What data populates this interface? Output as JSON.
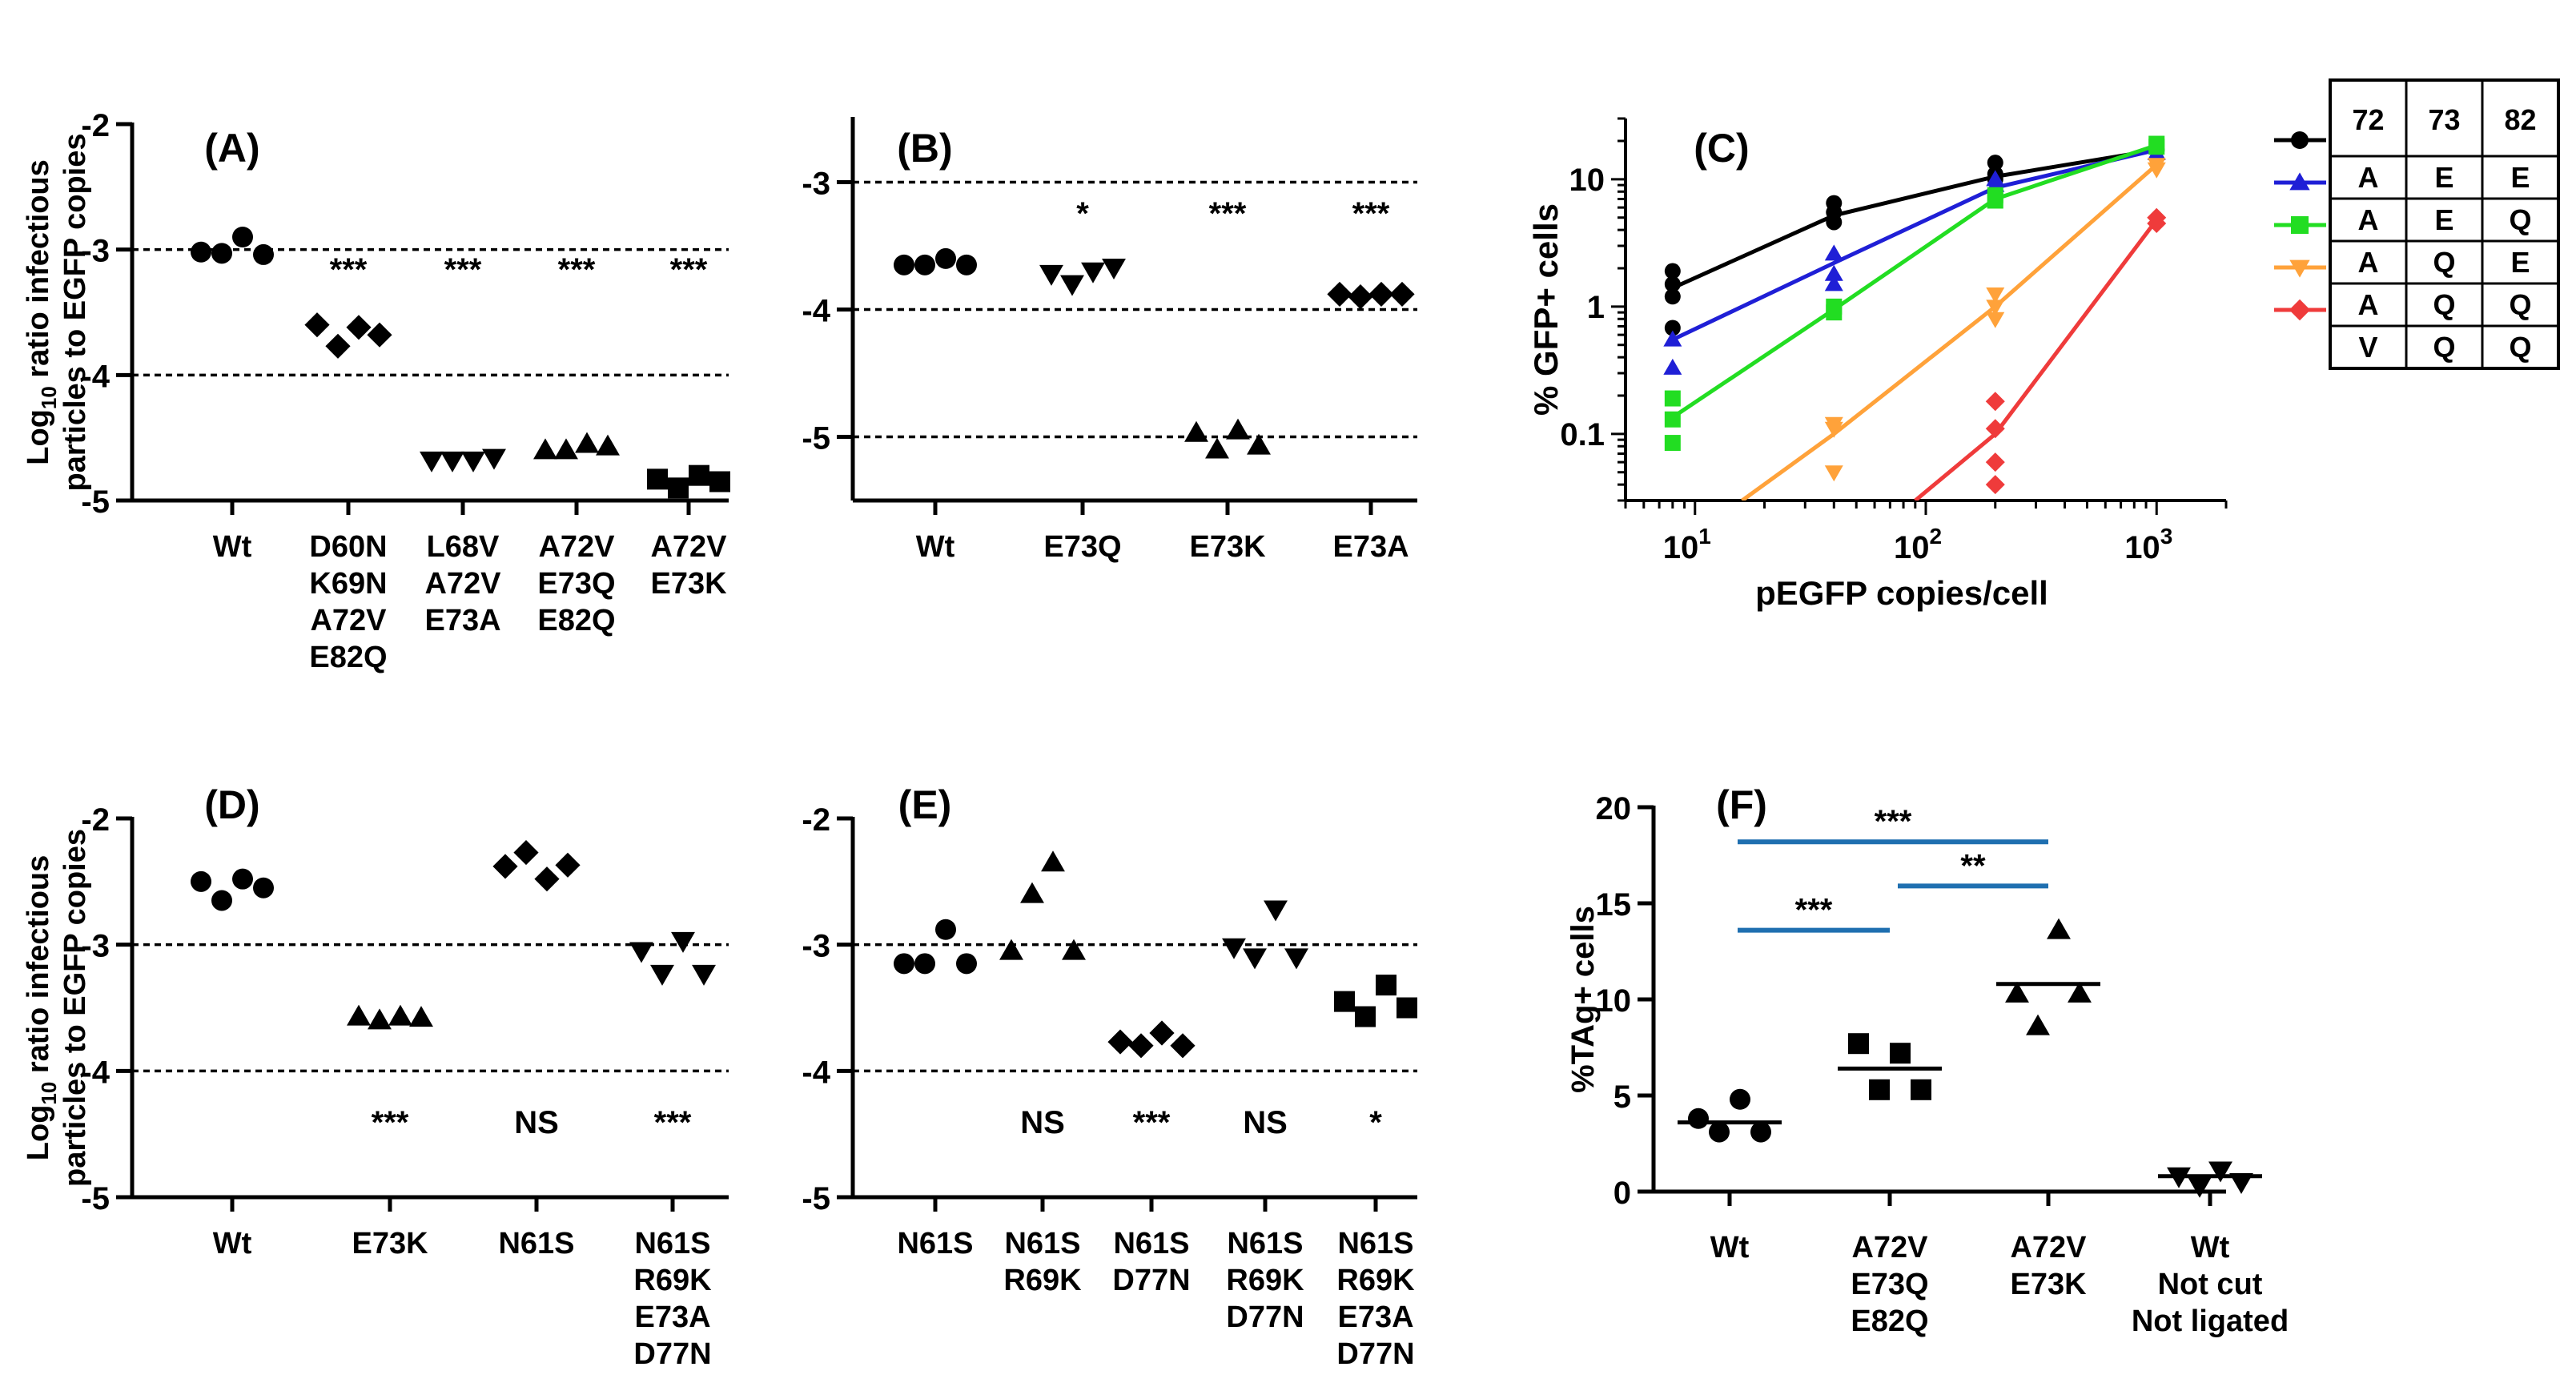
{
  "chart_data": [
    {
      "panel": "(A)",
      "type": "scatter",
      "ylabel_prefix": "Log",
      "ylabel_sub": "10",
      "ylabel_line1": " ratio infectious",
      "ylabel_line2": "particles to EGFP copies",
      "ylim": [
        -5,
        -2
      ],
      "yticks": [
        {
          "v": -2,
          "label": "-2"
        },
        {
          "v": -3,
          "label": "-3"
        },
        {
          "v": -4,
          "label": "-4"
        },
        {
          "v": -5,
          "label": "-5"
        }
      ],
      "reference_lines": [
        -3,
        -4
      ],
      "groups": [
        {
          "label_lines": [
            "Wt"
          ],
          "marker": "circle",
          "values": [
            -3.02,
            -3.03,
            -2.9,
            -3.04
          ],
          "sig": ""
        },
        {
          "label_lines": [
            "D60N",
            "K69N",
            "A72V",
            "E82Q"
          ],
          "marker": "diamond",
          "values": [
            -3.6,
            -3.77,
            -3.62,
            -3.68
          ],
          "sig": "***"
        },
        {
          "label_lines": [
            "L68V",
            "A72V",
            "E73A"
          ],
          "marker": "triangle-down",
          "values": [
            -4.68,
            -4.68,
            -4.68,
            -4.66
          ],
          "sig": "***"
        },
        {
          "label_lines": [
            "A72V",
            "E73Q",
            "E82Q"
          ],
          "marker": "triangle-up",
          "values": [
            -4.6,
            -4.6,
            -4.55,
            -4.57
          ],
          "sig": "***"
        },
        {
          "label_lines": [
            "A72V",
            "E73K"
          ],
          "marker": "square",
          "values": [
            -4.83,
            -4.9,
            -4.8,
            -4.85
          ],
          "sig": "***"
        }
      ]
    },
    {
      "panel": "(B)",
      "type": "scatter",
      "ylim": [
        -5.5,
        -2.5
      ],
      "yticks": [
        {
          "v": -3,
          "label": "-3"
        },
        {
          "v": -4,
          "label": "-4"
        },
        {
          "v": -5,
          "label": "-5"
        }
      ],
      "reference_lines": [
        -3,
        -4,
        -5
      ],
      "groups": [
        {
          "label_lines": [
            "Wt"
          ],
          "marker": "circle",
          "values": [
            -3.65,
            -3.65,
            -3.6,
            -3.65
          ],
          "sig": ""
        },
        {
          "label_lines": [
            "E73Q"
          ],
          "marker": "triangle-down",
          "values": [
            -3.72,
            -3.8,
            -3.7,
            -3.67
          ],
          "sig": "*"
        },
        {
          "label_lines": [
            "E73K"
          ],
          "marker": "triangle-up",
          "values": [
            -4.97,
            -5.1,
            -4.95,
            -5.07
          ],
          "sig": "***"
        },
        {
          "label_lines": [
            "E73A"
          ],
          "marker": "diamond",
          "values": [
            -3.88,
            -3.9,
            -3.88,
            -3.88
          ],
          "sig": "***"
        }
      ]
    },
    {
      "panel": "(C)",
      "type": "line",
      "xlabel": "pEGFP copies/cell",
      "ylabel": "% GFP+ cells",
      "xscale": "log",
      "yscale": "log",
      "xlim": [
        5,
        2000
      ],
      "ylim": [
        0.03,
        30
      ],
      "xticks": [
        {
          "v": 10,
          "base": "10",
          "exp": "1"
        },
        {
          "v": 100,
          "base": "10",
          "exp": "2"
        },
        {
          "v": 1000,
          "base": "10",
          "exp": "3"
        }
      ],
      "yticks": [
        {
          "v": 10,
          "label": "10"
        },
        {
          "v": 1,
          "label": "1"
        },
        {
          "v": 0.1,
          "label": "0.1"
        }
      ],
      "series": [
        {
          "name": "A E E",
          "color": "#000000",
          "marker": "circle",
          "points": [
            [
              8,
              1.9
            ],
            [
              8,
              1.5
            ],
            [
              8,
              1.2
            ],
            [
              8,
              0.68
            ],
            [
              40,
              6.5
            ],
            [
              40,
              5.5
            ],
            [
              40,
              4.6
            ],
            [
              200,
              13.5
            ],
            [
              200,
              11
            ],
            [
              200,
              10
            ],
            [
              1000,
              17
            ]
          ],
          "fit": [
            [
              8,
              1.4
            ],
            [
              40,
              5.2
            ],
            [
              200,
              10.5
            ],
            [
              1000,
              17
            ]
          ]
        },
        {
          "name": "A E Q",
          "color": "#1f1fd6",
          "marker": "triangle-up",
          "points": [
            [
              8,
              0.55
            ],
            [
              8,
              0.33
            ],
            [
              40,
              2.6
            ],
            [
              40,
              1.8
            ],
            [
              40,
              1.5
            ],
            [
              200,
              10
            ],
            [
              200,
              9
            ],
            [
              1000,
              16
            ]
          ],
          "fit": [
            [
              8,
              0.55
            ],
            [
              40,
              2.2
            ],
            [
              200,
              8.6
            ],
            [
              1000,
              17
            ]
          ]
        },
        {
          "name": "A Q E",
          "color": "#22dd22",
          "marker": "square",
          "points": [
            [
              8,
              0.19
            ],
            [
              8,
              0.13
            ],
            [
              8,
              0.085
            ],
            [
              40,
              1.0
            ],
            [
              40,
              0.9
            ],
            [
              200,
              7.5
            ],
            [
              200,
              6.8
            ],
            [
              1000,
              19
            ],
            [
              1000,
              18
            ]
          ],
          "fit": [
            [
              8,
              0.135
            ],
            [
              40,
              0.95
            ],
            [
              200,
              7
            ],
            [
              1000,
              18.5
            ]
          ]
        },
        {
          "name": "A Q Q",
          "color": "#ffa23a",
          "marker": "triangle-down",
          "points": [
            [
              40,
              0.12
            ],
            [
              40,
              0.11
            ],
            [
              40,
              0.05
            ],
            [
              200,
              1.25
            ],
            [
              200,
              1.0
            ],
            [
              200,
              0.8
            ],
            [
              1000,
              13
            ],
            [
              1000,
              12
            ]
          ],
          "fit": [
            [
              16,
              0.03
            ],
            [
              40,
              0.1
            ],
            [
              200,
              1.0
            ],
            [
              1000,
              13
            ]
          ]
        },
        {
          "name": "V Q Q",
          "color": "#ef3b3b",
          "marker": "diamond",
          "points": [
            [
              200,
              0.18
            ],
            [
              200,
              0.11
            ],
            [
              200,
              0.06
            ],
            [
              200,
              0.04
            ],
            [
              1000,
              5.0
            ],
            [
              1000,
              4.5
            ]
          ],
          "fit": [
            [
              90,
              0.03
            ],
            [
              200,
              0.1
            ],
            [
              1000,
              4.8
            ]
          ]
        }
      ],
      "legend_table": {
        "headers": [
          "72",
          "73",
          "82"
        ],
        "rows": [
          [
            "A",
            "E",
            "E"
          ],
          [
            "A",
            "E",
            "Q"
          ],
          [
            "A",
            "Q",
            "E"
          ],
          [
            "A",
            "Q",
            "Q"
          ],
          [
            "V",
            "Q",
            "Q"
          ]
        ]
      }
    },
    {
      "panel": "(D)",
      "type": "scatter",
      "ylabel_prefix": "Log",
      "ylabel_sub": "10",
      "ylabel_line1": " ratio infectious",
      "ylabel_line2": "particles to EGFP copies",
      "ylim": [
        -5,
        -2
      ],
      "yticks": [
        {
          "v": -2,
          "label": "-2"
        },
        {
          "v": -3,
          "label": "-3"
        },
        {
          "v": -4,
          "label": "-4"
        },
        {
          "v": -5,
          "label": "-5"
        }
      ],
      "reference_lines": [
        -3,
        -4
      ],
      "groups": [
        {
          "label_lines": [
            "Wt"
          ],
          "marker": "circle",
          "values": [
            -2.5,
            -2.65,
            -2.48,
            -2.55
          ],
          "sig": ""
        },
        {
          "label_lines": [
            "E73K"
          ],
          "marker": "triangle-up",
          "values": [
            -3.57,
            -3.6,
            -3.57,
            -3.58
          ],
          "sig": "***"
        },
        {
          "label_lines": [
            "N61S"
          ],
          "marker": "diamond",
          "values": [
            -2.38,
            -2.27,
            -2.48,
            -2.37
          ],
          "sig": "NS"
        },
        {
          "label_lines": [
            "N61S",
            "R69K",
            "E73A",
            "D77N"
          ],
          "marker": "triangle-down",
          "values": [
            -3.05,
            -3.23,
            -2.97,
            -3.23
          ],
          "sig": "***"
        }
      ]
    },
    {
      "panel": "(E)",
      "type": "scatter",
      "ylim": [
        -5,
        -2
      ],
      "yticks": [
        {
          "v": -2,
          "label": "-2"
        },
        {
          "v": -3,
          "label": "-3"
        },
        {
          "v": -4,
          "label": "-4"
        },
        {
          "v": -5,
          "label": "-5"
        }
      ],
      "reference_lines": [
        -3,
        -4
      ],
      "groups": [
        {
          "label_lines": [
            "N61S"
          ],
          "marker": "circle",
          "values": [
            -3.15,
            -3.15,
            -2.88,
            -3.15
          ],
          "sig": ""
        },
        {
          "label_lines": [
            "N61S",
            "R69K"
          ],
          "marker": "triangle-up",
          "values": [
            -3.05,
            -2.6,
            -2.35,
            -3.05
          ],
          "sig": "NS"
        },
        {
          "label_lines": [
            "N61S",
            "D77N"
          ],
          "marker": "diamond",
          "values": [
            -3.77,
            -3.8,
            -3.7,
            -3.8
          ],
          "sig": "***"
        },
        {
          "label_lines": [
            "N61S",
            "R69K",
            "D77N"
          ],
          "marker": "triangle-down",
          "values": [
            -3.02,
            -3.1,
            -2.72,
            -3.1
          ],
          "sig": "NS"
        },
        {
          "label_lines": [
            "N61S",
            "R69K",
            "E73A",
            "D77N"
          ],
          "marker": "square",
          "values": [
            -3.45,
            -3.57,
            -3.32,
            -3.5
          ],
          "sig": "*"
        }
      ]
    },
    {
      "panel": "(F)",
      "type": "scatter",
      "ylabel": "%TAg+ cells",
      "ylim": [
        0,
        20
      ],
      "yticks": [
        {
          "v": 0,
          "label": "0"
        },
        {
          "v": 5,
          "label": "5"
        },
        {
          "v": 10,
          "label": "10"
        },
        {
          "v": 15,
          "label": "15"
        },
        {
          "v": 20,
          "label": "20"
        }
      ],
      "groups": [
        {
          "label_lines": [
            "Wt"
          ],
          "marker": "circle",
          "values": [
            3.8,
            3.1,
            4.8,
            3.1
          ],
          "mean": 3.6
        },
        {
          "label_lines": [
            "A72V",
            "E73Q",
            "E82Q"
          ],
          "marker": "square",
          "values": [
            7.7,
            5.3,
            7.2,
            5.3
          ],
          "mean": 6.4
        },
        {
          "label_lines": [
            "A72V",
            "E73K"
          ],
          "marker": "triangle-up",
          "values": [
            10.3,
            8.6,
            13.6,
            10.3
          ],
          "mean": 10.8
        },
        {
          "label_lines": [
            "Wt",
            "Not cut",
            "Not ligated"
          ],
          "marker": "triangle-down",
          "values": [
            0.8,
            0.3,
            1.1,
            0.5
          ],
          "mean": 0.8
        }
      ],
      "brackets": [
        {
          "from": 0,
          "to": 2,
          "y": 18.2,
          "label": "***"
        },
        {
          "from": 1,
          "to": 2,
          "y": 15.9,
          "label": "**"
        },
        {
          "from": 0,
          "to": 1,
          "y": 13.6,
          "label": "***"
        }
      ],
      "bracket_color": "#1f6fb0"
    }
  ]
}
